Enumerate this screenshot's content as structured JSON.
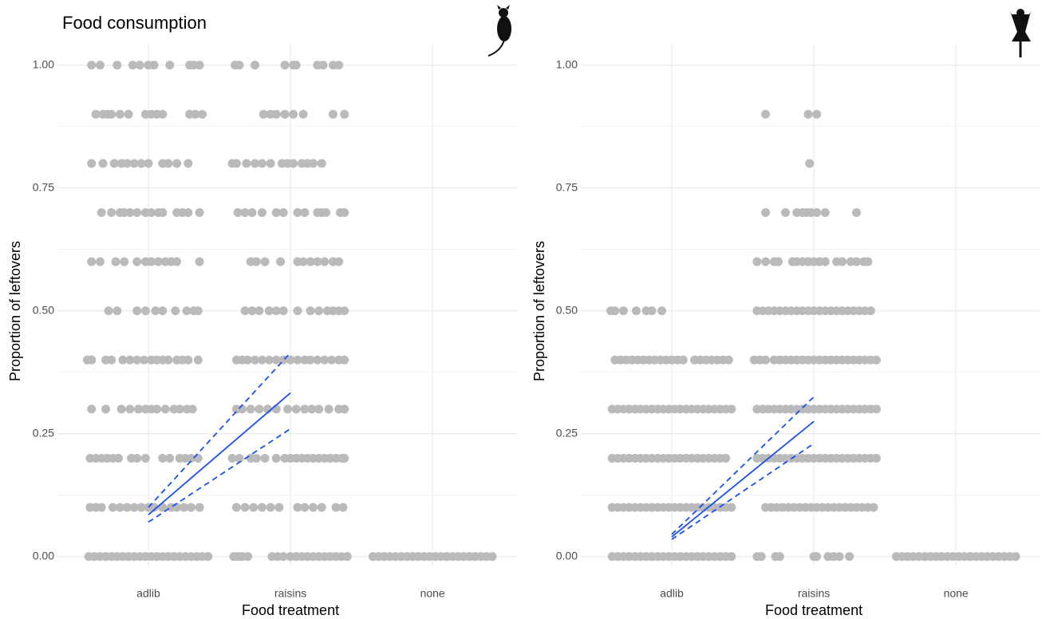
{
  "chart_data": [
    {
      "type": "jitter",
      "title": "Food consumption",
      "x_label": "Food treatment",
      "y_label": "Proportion of leftovers",
      "categories": [
        "adlib",
        "raisins",
        "none"
      ],
      "xlim": [
        0.36,
        3.6
      ],
      "ylim": [
        -0.02,
        1.04
      ],
      "yticks": [
        {
          "value": 0,
          "label": "0.00"
        },
        {
          "value": 0.25,
          "label": "0.25"
        },
        {
          "value": 0.5,
          "label": "0.50"
        },
        {
          "value": 0.75,
          "label": "0.75"
        },
        {
          "value": 1,
          "label": "1.00"
        }
      ],
      "y_minor_grid": [
        0.125,
        0.375,
        0.625,
        0.875
      ],
      "grid": true,
      "point_color": "#bababa",
      "groups": [
        {
          "y": 1.0,
          "x": [
            0.6,
            0.66,
            0.78,
            0.89,
            0.94,
            1.0,
            1.04,
            1.15,
            1.29,
            1.32,
            1.36,
            1.61,
            1.64,
            1.75,
            1.96,
            2.02,
            2.04,
            2.19,
            2.23,
            2.3,
            2.34
          ]
        },
        {
          "y": 0.9,
          "x": [
            0.63,
            0.68,
            0.71,
            0.74,
            0.8,
            0.86,
            0.98,
            1.02,
            1.06,
            1.1,
            1.29,
            1.33,
            1.38,
            1.81,
            1.86,
            1.9,
            1.96,
            2.02,
            2.09,
            2.3,
            2.38
          ]
        },
        {
          "y": 0.8,
          "x": [
            0.6,
            0.68,
            0.76,
            0.81,
            0.85,
            0.9,
            0.95,
            1.0,
            1.1,
            1.14,
            1.2,
            1.28,
            1.59,
            1.62,
            1.69,
            1.75,
            1.8,
            1.86,
            1.94,
            1.98,
            2.02,
            2.08,
            2.12,
            2.16,
            2.22
          ]
        },
        {
          "y": 0.7,
          "x": [
            0.67,
            0.74,
            0.8,
            0.83,
            0.87,
            0.92,
            0.98,
            1.02,
            1.07,
            1.1,
            1.2,
            1.24,
            1.28,
            1.36,
            1.63,
            1.68,
            1.73,
            1.8,
            1.9,
            1.95,
            2.05,
            2.1,
            2.19,
            2.22,
            2.25,
            2.35,
            2.38
          ]
        },
        {
          "y": 0.6,
          "x": [
            0.6,
            0.66,
            0.77,
            0.83,
            0.92,
            0.98,
            1.02,
            1.07,
            1.12,
            1.16,
            1.2,
            1.36,
            1.72,
            1.76,
            1.82,
            1.93,
            2.05,
            2.09,
            2.14,
            2.19,
            2.24,
            2.3,
            2.34
          ]
        },
        {
          "y": 0.5,
          "x": [
            0.72,
            0.78,
            0.92,
            0.98,
            1.05,
            1.1,
            1.19,
            1.27,
            1.32,
            1.35,
            1.68,
            1.73,
            1.78,
            1.85,
            1.9,
            1.95,
            2.05,
            2.14,
            2.2,
            2.26,
            2.3,
            2.34,
            2.38
          ]
        },
        {
          "y": 0.4,
          "x": [
            0.57,
            0.6,
            0.7,
            0.74,
            0.82,
            0.87,
            0.92,
            0.97,
            1.02,
            1.06,
            1.1,
            1.14,
            1.2,
            1.24,
            1.28,
            1.35,
            1.62,
            1.66,
            1.7,
            1.75,
            1.8,
            1.85,
            1.9,
            1.95,
            2.0,
            2.05,
            2.1,
            2.14,
            2.19,
            2.24,
            2.29,
            2.34,
            2.38
          ]
        },
        {
          "y": 0.3,
          "x": [
            0.6,
            0.7,
            0.81,
            0.87,
            0.93,
            0.98,
            1.02,
            1.06,
            1.12,
            1.18,
            1.22,
            1.27,
            1.31,
            1.62,
            1.66,
            1.72,
            1.78,
            1.84,
            1.9,
            1.98,
            2.04,
            2.1,
            2.15,
            2.2,
            2.27,
            2.34,
            2.38
          ]
        },
        {
          "y": 0.2,
          "x": [
            0.59,
            0.63,
            0.67,
            0.71,
            0.75,
            0.79,
            0.88,
            0.92,
            0.98,
            1.1,
            1.15,
            1.22,
            1.26,
            1.3,
            1.35,
            1.59,
            1.64,
            1.72,
            1.76,
            1.82,
            1.9,
            1.96,
            2.0,
            2.04,
            2.08,
            2.12,
            2.16,
            2.2,
            2.24,
            2.28,
            2.32,
            2.36,
            2.38
          ]
        },
        {
          "y": 0.1,
          "x": [
            0.59,
            0.63,
            0.67,
            0.75,
            0.8,
            0.85,
            0.9,
            0.95,
            1.0,
            1.04,
            1.1,
            1.16,
            1.2,
            1.25,
            1.3,
            1.36,
            1.62,
            1.68,
            1.74,
            1.8,
            1.86,
            1.92,
            2.05,
            2.1,
            2.16,
            2.22,
            2.32,
            2.37
          ]
        },
        {
          "y": 0.0,
          "x": [
            0.58,
            0.62,
            0.66,
            0.7,
            0.74,
            0.78,
            0.82,
            0.86,
            0.9,
            0.94,
            0.98,
            1.02,
            1.06,
            1.1,
            1.14,
            1.18,
            1.22,
            1.26,
            1.3,
            1.34,
            1.38,
            1.42,
            1.6,
            1.63,
            1.66,
            1.7,
            1.87,
            1.91,
            1.95,
            2.0,
            2.04,
            2.08,
            2.12,
            2.16,
            2.2,
            2.24,
            2.28,
            2.32,
            2.36,
            2.4,
            2.58,
            2.62,
            2.66,
            2.7,
            2.74,
            2.78,
            2.82,
            2.86,
            2.9,
            2.94,
            2.98,
            3.02,
            3.06,
            3.1,
            3.14,
            3.18,
            3.22,
            3.26,
            3.3,
            3.34,
            3.38,
            3.42
          ]
        }
      ],
      "fits": [
        {
          "style": "solid",
          "color": "#1a4ff0",
          "x": [
            1,
            2
          ],
          "values": [
            0.085,
            0.333
          ]
        },
        {
          "style": "dashed",
          "color": "#1a4ff0",
          "x": [
            1,
            2
          ],
          "values": [
            0.07,
            0.26
          ]
        },
        {
          "style": "dashed",
          "color": "#1a4ff0",
          "x": [
            1,
            2
          ],
          "values": [
            0.1,
            0.415
          ]
        }
      ]
    },
    {
      "type": "jitter",
      "x_label": "Food treatment",
      "y_label": "Proportion of leftovers",
      "categories": [
        "adlib",
        "raisins",
        "none"
      ],
      "xlim": [
        0.36,
        3.6
      ],
      "ylim": [
        -0.02,
        1.04
      ],
      "yticks": [
        {
          "value": 0,
          "label": "0.00"
        },
        {
          "value": 0.25,
          "label": "0.25"
        },
        {
          "value": 0.5,
          "label": "0.50"
        },
        {
          "value": 0.75,
          "label": "0.75"
        },
        {
          "value": 1,
          "label": "1.00"
        }
      ],
      "y_minor_grid": [
        0.125,
        0.375,
        0.625,
        0.875
      ],
      "grid": true,
      "point_color": "#bababa",
      "groups": [
        {
          "y": 0.9,
          "x": [
            1.66,
            1.96,
            2.02
          ]
        },
        {
          "y": 0.8,
          "x": [
            1.97
          ]
        },
        {
          "y": 0.7,
          "x": [
            1.66,
            1.8,
            1.88,
            1.92,
            1.95,
            1.98,
            2.02,
            2.08,
            2.3
          ]
        },
        {
          "y": 0.6,
          "x": [
            1.6,
            1.66,
            1.72,
            1.75,
            1.85,
            1.88,
            1.92,
            1.96,
            2.0,
            2.04,
            2.08,
            2.16,
            2.2,
            2.26,
            2.3,
            2.35,
            2.38
          ]
        },
        {
          "y": 0.5,
          "x": [
            0.57,
            0.6,
            0.66,
            0.75,
            0.82,
            0.86,
            0.93,
            1.6,
            1.64,
            1.68,
            1.72,
            1.76,
            1.8,
            1.84,
            1.88,
            1.92,
            1.96,
            2.0,
            2.04,
            2.08,
            2.12,
            2.16,
            2.2,
            2.24,
            2.28,
            2.32,
            2.36,
            2.4
          ]
        },
        {
          "y": 0.4,
          "x": [
            0.6,
            0.64,
            0.68,
            0.72,
            0.76,
            0.8,
            0.84,
            0.88,
            0.92,
            0.96,
            1.0,
            1.04,
            1.08,
            1.16,
            1.2,
            1.24,
            1.28,
            1.32,
            1.36,
            1.4,
            1.58,
            1.62,
            1.66,
            1.72,
            1.76,
            1.8,
            1.84,
            1.88,
            1.92,
            1.96,
            2.0,
            2.04,
            2.08,
            2.12,
            2.16,
            2.2,
            2.24,
            2.28,
            2.32,
            2.36,
            2.4,
            2.44
          ]
        },
        {
          "y": 0.3,
          "x": [
            0.58,
            0.62,
            0.66,
            0.7,
            0.74,
            0.78,
            0.82,
            0.86,
            0.9,
            0.94,
            0.98,
            1.02,
            1.06,
            1.1,
            1.14,
            1.18,
            1.22,
            1.26,
            1.3,
            1.34,
            1.38,
            1.42,
            1.6,
            1.64,
            1.68,
            1.72,
            1.76,
            1.8,
            1.84,
            1.88,
            1.92,
            1.96,
            2.0,
            2.04,
            2.08,
            2.12,
            2.16,
            2.2,
            2.24,
            2.28,
            2.32,
            2.36,
            2.4,
            2.44
          ]
        },
        {
          "y": 0.2,
          "x": [
            0.58,
            0.62,
            0.66,
            0.7,
            0.74,
            0.78,
            0.82,
            0.86,
            0.9,
            0.94,
            0.98,
            1.02,
            1.06,
            1.1,
            1.14,
            1.18,
            1.22,
            1.26,
            1.3,
            1.34,
            1.38,
            1.6,
            1.64,
            1.68,
            1.72,
            1.76,
            1.8,
            1.84,
            1.88,
            1.92,
            1.96,
            2.0,
            2.04,
            2.08,
            2.12,
            2.16,
            2.2,
            2.24,
            2.28,
            2.32,
            2.36,
            2.4,
            2.44
          ]
        },
        {
          "y": 0.1,
          "x": [
            0.58,
            0.62,
            0.66,
            0.7,
            0.74,
            0.78,
            0.82,
            0.86,
            0.9,
            0.94,
            0.98,
            1.02,
            1.06,
            1.1,
            1.14,
            1.18,
            1.22,
            1.26,
            1.3,
            1.34,
            1.38,
            1.42,
            1.66,
            1.7,
            1.74,
            1.78,
            1.82,
            1.86,
            1.9,
            1.94,
            1.98,
            2.02,
            2.06,
            2.1,
            2.14,
            2.18,
            2.22,
            2.26,
            2.3,
            2.34,
            2.38,
            2.42
          ]
        },
        {
          "y": 0.0,
          "x": [
            0.58,
            0.62,
            0.66,
            0.7,
            0.74,
            0.78,
            0.82,
            0.86,
            0.9,
            0.94,
            0.98,
            1.02,
            1.06,
            1.1,
            1.14,
            1.18,
            1.22,
            1.26,
            1.3,
            1.34,
            1.38,
            1.42,
            1.6,
            1.63,
            1.73,
            1.76,
            2.0,
            2.02,
            2.1,
            2.14,
            2.18,
            2.25,
            2.58,
            2.62,
            2.66,
            2.7,
            2.74,
            2.78,
            2.82,
            2.86,
            2.9,
            2.94,
            2.98,
            3.02,
            3.06,
            3.1,
            3.14,
            3.18,
            3.22,
            3.26,
            3.3,
            3.34,
            3.38,
            3.42
          ]
        }
      ],
      "fits": [
        {
          "style": "solid",
          "color": "#1a4ff0",
          "x": [
            1,
            2
          ],
          "values": [
            0.04,
            0.275
          ]
        },
        {
          "style": "dashed",
          "color": "#1a4ff0",
          "x": [
            1,
            2
          ],
          "values": [
            0.035,
            0.23
          ]
        },
        {
          "style": "dashed",
          "color": "#1a4ff0",
          "x": [
            1,
            2
          ],
          "values": [
            0.045,
            0.325
          ]
        }
      ]
    }
  ]
}
